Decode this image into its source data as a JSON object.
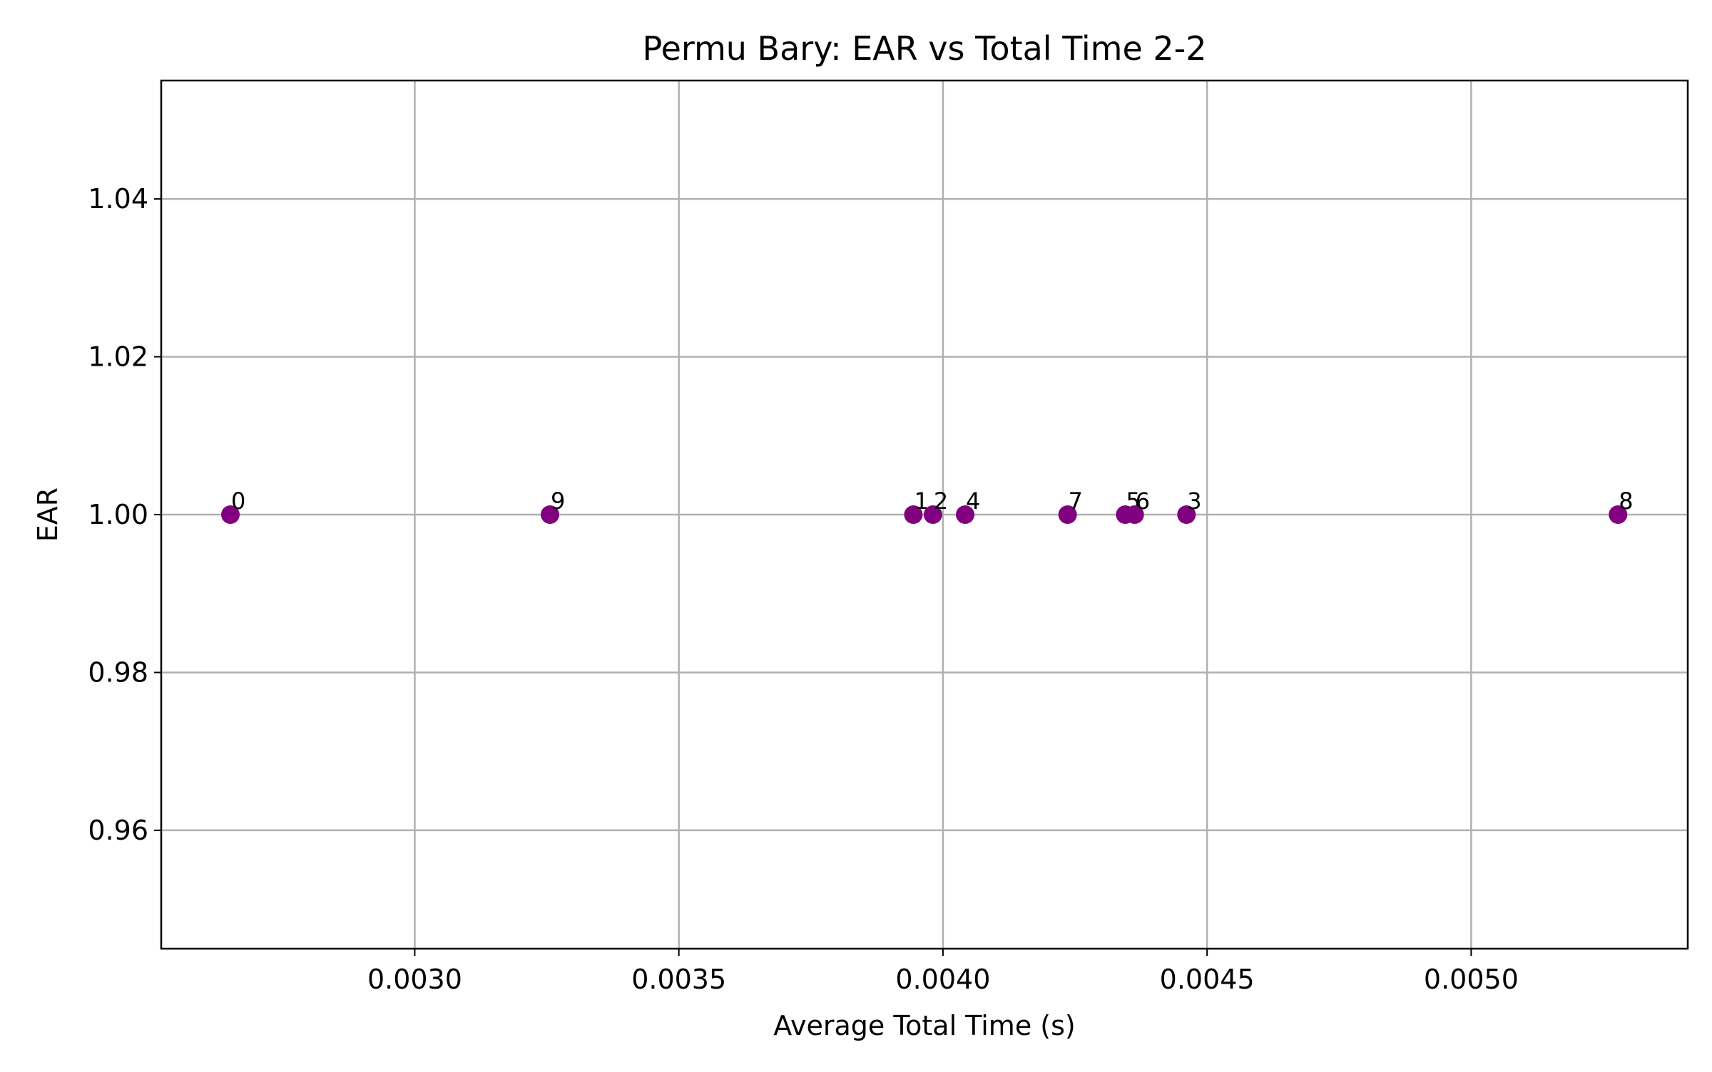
{
  "chart_data": {
    "type": "scatter",
    "title": "Permu Bary: EAR vs Total Time 2-2",
    "xlabel": "Average Total Time (s)",
    "ylabel": "EAR",
    "xlim": [
      0.00252,
      0.00541
    ],
    "ylim": [
      0.945,
      1.055
    ],
    "xticks": [
      0.003,
      0.0035,
      0.004,
      0.0045,
      0.005
    ],
    "xtick_labels": [
      "0.0030",
      "0.0035",
      "0.0040",
      "0.0045",
      "0.0050"
    ],
    "yticks": [
      0.96,
      0.98,
      1.0,
      1.02,
      1.04
    ],
    "ytick_labels": [
      "0.96",
      "0.98",
      "1.00",
      "1.02",
      "1.04"
    ],
    "grid": true,
    "marker_color": "#800080",
    "points": [
      {
        "label": "0",
        "x": 0.002651,
        "y": 1.0
      },
      {
        "label": "9",
        "x": 0.003256,
        "y": 1.0
      },
      {
        "label": "1",
        "x": 0.003944,
        "y": 1.0
      },
      {
        "label": "2",
        "x": 0.003981,
        "y": 1.0
      },
      {
        "label": "4",
        "x": 0.004042,
        "y": 1.0
      },
      {
        "label": "7",
        "x": 0.004236,
        "y": 1.0
      },
      {
        "label": "5",
        "x": 0.004345,
        "y": 1.0
      },
      {
        "label": "6",
        "x": 0.004363,
        "y": 1.0
      },
      {
        "label": "3",
        "x": 0.004461,
        "y": 1.0
      },
      {
        "label": "8",
        "x": 0.005278,
        "y": 1.0
      }
    ]
  }
}
